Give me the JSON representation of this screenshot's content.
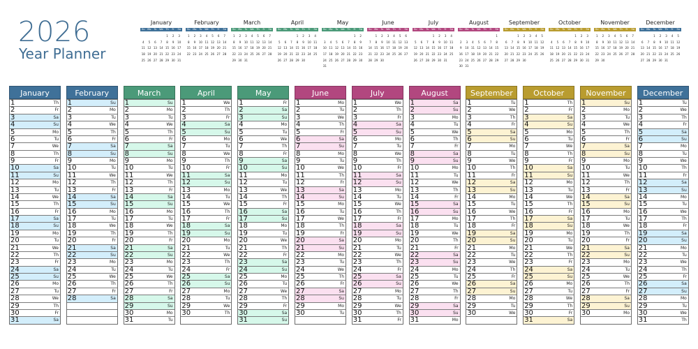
{
  "header": {
    "year": "2026",
    "subtitle": "Year Planner"
  },
  "weekday_header": [
    "Su",
    "Mo",
    "Tu",
    "We",
    "Th",
    "Fr",
    "Sa"
  ],
  "themes": {
    "blue": {
      "dark": "#3f7199",
      "light": "#d3eefb"
    },
    "green": {
      "dark": "#4b9a79",
      "light": "#d6f8ea"
    },
    "magenta": {
      "dark": "#b2477f",
      "light": "#fbe0f0"
    },
    "gold": {
      "dark": "#b99c2f",
      "light": "#fdf3d3"
    }
  },
  "months": [
    {
      "name": "January",
      "theme": "blue",
      "days": [
        "Th",
        "Fr",
        "Sa",
        "Su",
        "Mo",
        "Tu",
        "We",
        "Th",
        "Fr",
        "Sa",
        "Su",
        "Mo",
        "Tu",
        "We",
        "Th",
        "Fr",
        "Sa",
        "Su",
        "Mo",
        "Tu",
        "We",
        "Th",
        "Fr",
        "Sa",
        "Su",
        "Mo",
        "Tu",
        "We",
        "Th",
        "Fr",
        "Sa"
      ]
    },
    {
      "name": "February",
      "theme": "blue",
      "days": [
        "Su",
        "Mo",
        "Tu",
        "We",
        "Th",
        "Fr",
        "Sa",
        "Su",
        "Mo",
        "Tu",
        "We",
        "Th",
        "Fr",
        "Sa",
        "Su",
        "Mo",
        "Tu",
        "We",
        "Th",
        "Fr",
        "Sa",
        "Su",
        "Mo",
        "Tu",
        "We",
        "Th",
        "Fr",
        "Sa"
      ]
    },
    {
      "name": "March",
      "theme": "green",
      "days": [
        "Su",
        "Mo",
        "Tu",
        "We",
        "Th",
        "Fr",
        "Sa",
        "Su",
        "Mo",
        "Tu",
        "We",
        "Th",
        "Fr",
        "Sa",
        "Su",
        "Mo",
        "Tu",
        "We",
        "Th",
        "Fr",
        "Sa",
        "Su",
        "Mo",
        "Tu",
        "We",
        "Th",
        "Fr",
        "Sa",
        "Su",
        "Mo",
        "Tu"
      ]
    },
    {
      "name": "April",
      "theme": "green",
      "days": [
        "We",
        "Th",
        "Fr",
        "Sa",
        "Su",
        "Mo",
        "Tu",
        "We",
        "Th",
        "Fr",
        "Sa",
        "Su",
        "Mo",
        "Tu",
        "We",
        "Th",
        "Fr",
        "Sa",
        "Su",
        "Mo",
        "Tu",
        "We",
        "Th",
        "Fr",
        "Sa",
        "Su",
        "Mo",
        "Tu",
        "We",
        "Th"
      ]
    },
    {
      "name": "May",
      "theme": "green",
      "days": [
        "Fr",
        "Sa",
        "Su",
        "Mo",
        "Tu",
        "We",
        "Th",
        "Fr",
        "Sa",
        "Su",
        "Mo",
        "Tu",
        "We",
        "Th",
        "Fr",
        "Sa",
        "Su",
        "Mo",
        "Tu",
        "We",
        "Th",
        "Fr",
        "Sa",
        "Su",
        "Mo",
        "Tu",
        "We",
        "Th",
        "Fr",
        "Sa",
        "Su"
      ]
    },
    {
      "name": "June",
      "theme": "magenta",
      "days": [
        "Mo",
        "Tu",
        "We",
        "Th",
        "Fr",
        "Sa",
        "Su",
        "Mo",
        "Tu",
        "We",
        "Th",
        "Fr",
        "Sa",
        "Su",
        "Mo",
        "Tu",
        "We",
        "Th",
        "Fr",
        "Sa",
        "Su",
        "Mo",
        "Tu",
        "We",
        "Th",
        "Fr",
        "Sa",
        "Su",
        "Mo",
        "Tu"
      ]
    },
    {
      "name": "July",
      "theme": "magenta",
      "days": [
        "We",
        "Th",
        "Fr",
        "Sa",
        "Su",
        "Mo",
        "Tu",
        "We",
        "Th",
        "Fr",
        "Sa",
        "Su",
        "Mo",
        "Tu",
        "We",
        "Th",
        "Fr",
        "Sa",
        "Su",
        "Mo",
        "Tu",
        "We",
        "Th",
        "Fr",
        "Sa",
        "Su",
        "Mo",
        "Tu",
        "We",
        "Th",
        "Fr"
      ]
    },
    {
      "name": "August",
      "theme": "magenta",
      "days": [
        "Sa",
        "Su",
        "Mo",
        "Tu",
        "We",
        "Th",
        "Fr",
        "Sa",
        "Su",
        "Mo",
        "Tu",
        "We",
        "Th",
        "Fr",
        "Sa",
        "Su",
        "Mo",
        "Tu",
        "We",
        "Th",
        "Fr",
        "Sa",
        "Su",
        "Mo",
        "Tu",
        "We",
        "Th",
        "Fr",
        "Sa",
        "Su",
        "Mo"
      ]
    },
    {
      "name": "September",
      "theme": "gold",
      "days": [
        "Tu",
        "We",
        "Th",
        "Fr",
        "Sa",
        "Su",
        "Mo",
        "Tu",
        "We",
        "Th",
        "Fr",
        "Sa",
        "Su",
        "Mo",
        "Tu",
        "We",
        "Th",
        "Fr",
        "Sa",
        "Su",
        "Mo",
        "Tu",
        "We",
        "Th",
        "Fr",
        "Sa",
        "Su",
        "Mo",
        "Tu",
        "We"
      ]
    },
    {
      "name": "October",
      "theme": "gold",
      "days": [
        "Th",
        "Fr",
        "Sa",
        "Su",
        "Mo",
        "Tu",
        "We",
        "Th",
        "Fr",
        "Sa",
        "Su",
        "Mo",
        "Tu",
        "We",
        "Th",
        "Fr",
        "Sa",
        "Su",
        "Mo",
        "Tu",
        "We",
        "Th",
        "Fr",
        "Sa",
        "Su",
        "Mo",
        "Tu",
        "We",
        "Th",
        "Fr",
        "Sa"
      ]
    },
    {
      "name": "November",
      "theme": "gold",
      "days": [
        "Su",
        "Mo",
        "Tu",
        "We",
        "Th",
        "Fr",
        "Sa",
        "Su",
        "Mo",
        "Tu",
        "We",
        "Th",
        "Fr",
        "Sa",
        "Su",
        "Mo",
        "Tu",
        "We",
        "Th",
        "Fr",
        "Sa",
        "Su",
        "Mo",
        "Tu",
        "We",
        "Th",
        "Fr",
        "Sa",
        "Su",
        "Mo"
      ]
    },
    {
      "name": "December",
      "theme": "blue",
      "days": [
        "Tu",
        "We",
        "Th",
        "Fr",
        "Sa",
        "Su",
        "Mo",
        "Tu",
        "We",
        "Th",
        "Fr",
        "Sa",
        "Su",
        "Mo",
        "Tu",
        "We",
        "Th",
        "Fr",
        "Sa",
        "Su",
        "Mo",
        "Tu",
        "We",
        "Th",
        "Fr",
        "Sa",
        "Su",
        "Mo",
        "Tu",
        "We",
        "Th"
      ]
    }
  ]
}
